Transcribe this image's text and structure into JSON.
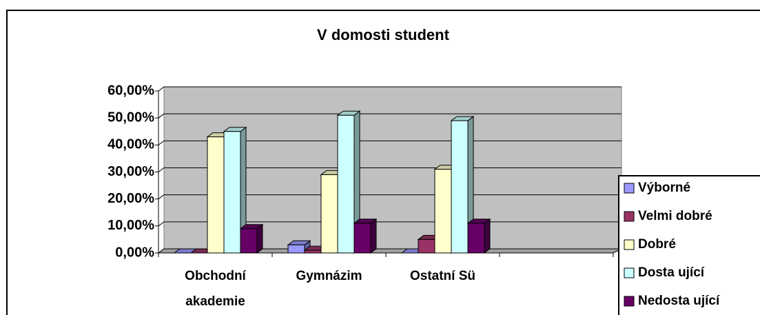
{
  "chart_data": {
    "type": "bar3d",
    "title": "V  domosti student",
    "categories": [
      "Obchodní akademie",
      "Gymnázim",
      "Ostatní Sü",
      null
    ],
    "series": [
      {
        "name": "Výborné",
        "color": "#9999ff",
        "values": [
          0,
          3,
          0,
          null
        ]
      },
      {
        "name": "Velmi dobré",
        "color": "#993366",
        "values": [
          0,
          1,
          5,
          null
        ]
      },
      {
        "name": "Dobré",
        "color": "#ffffcc",
        "values": [
          43,
          29,
          31,
          null
        ]
      },
      {
        "name": "Dosta ující",
        "color": "#ccffff",
        "values": [
          45,
          51,
          49,
          null
        ]
      },
      {
        "name": "Nedosta ující",
        "color": "#660066",
        "values": [
          9,
          11,
          11,
          null
        ]
      }
    ],
    "ylim": [
      0,
      60
    ],
    "yticks": [
      {
        "value": 0,
        "label": "0,00%"
      },
      {
        "value": 10,
        "label": "10,00%"
      },
      {
        "value": 20,
        "label": "20,00%"
      },
      {
        "value": 30,
        "label": "30,00%"
      },
      {
        "value": 40,
        "label": "40,00%"
      },
      {
        "value": 50,
        "label": "50,00%"
      },
      {
        "value": 60,
        "label": "60,00%"
      }
    ],
    "grid": true,
    "legend": "right"
  }
}
